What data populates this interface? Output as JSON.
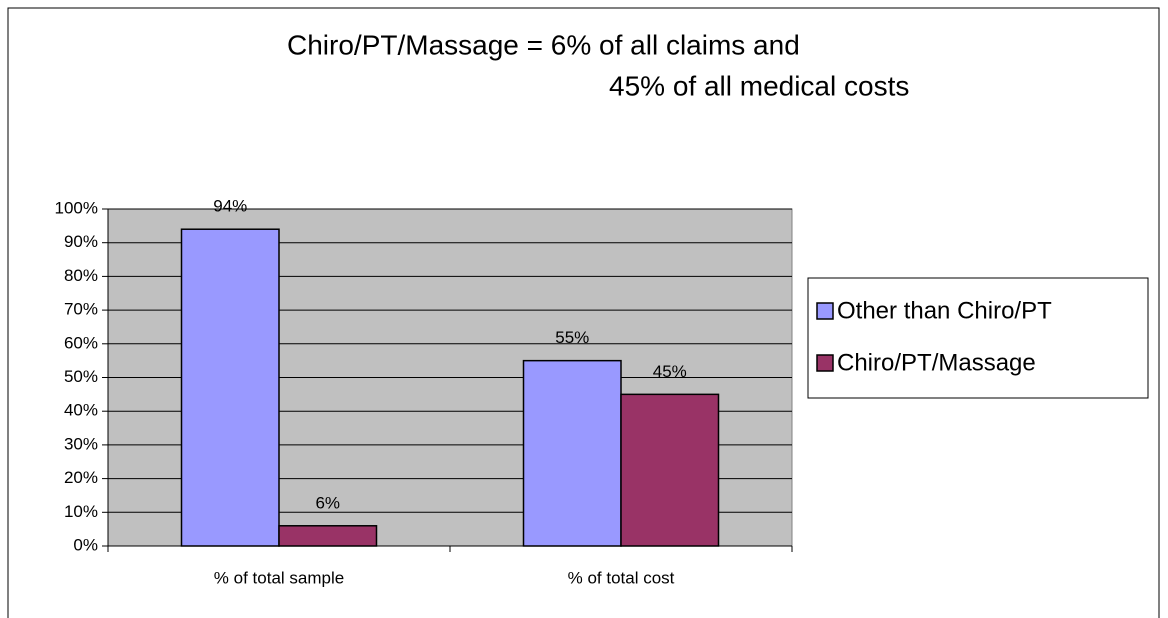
{
  "chart_data": {
    "type": "bar",
    "title": [
      "Chiro/PT/Massage = 6% of all claims and",
      "45% of all medical costs"
    ],
    "categories": [
      "% of total sample",
      "% of total cost"
    ],
    "series": [
      {
        "name": "Other than Chiro/PT",
        "color": "#9999ff",
        "values": [
          94,
          55
        ],
        "value_labels": [
          "94%",
          "55%"
        ]
      },
      {
        "name": "Chiro/PT/Massage",
        "color": "#993366",
        "values": [
          6,
          45
        ],
        "value_labels": [
          "6%",
          "45%"
        ]
      }
    ],
    "ylim": [
      0,
      100
    ],
    "yticks": [
      {
        "value": 0,
        "label": "0%"
      },
      {
        "value": 10,
        "label": "10%"
      },
      {
        "value": 20,
        "label": "20%"
      },
      {
        "value": 30,
        "label": "30%"
      },
      {
        "value": 40,
        "label": "40%"
      },
      {
        "value": 50,
        "label": "50%"
      },
      {
        "value": 60,
        "label": "60%"
      },
      {
        "value": 70,
        "label": "70%"
      },
      {
        "value": 80,
        "label": "80%"
      },
      {
        "value": 90,
        "label": "90%"
      },
      {
        "value": 100,
        "label": "100%"
      }
    ],
    "grid": true,
    "plot_background": "#c0c0c0",
    "legend": "right"
  }
}
